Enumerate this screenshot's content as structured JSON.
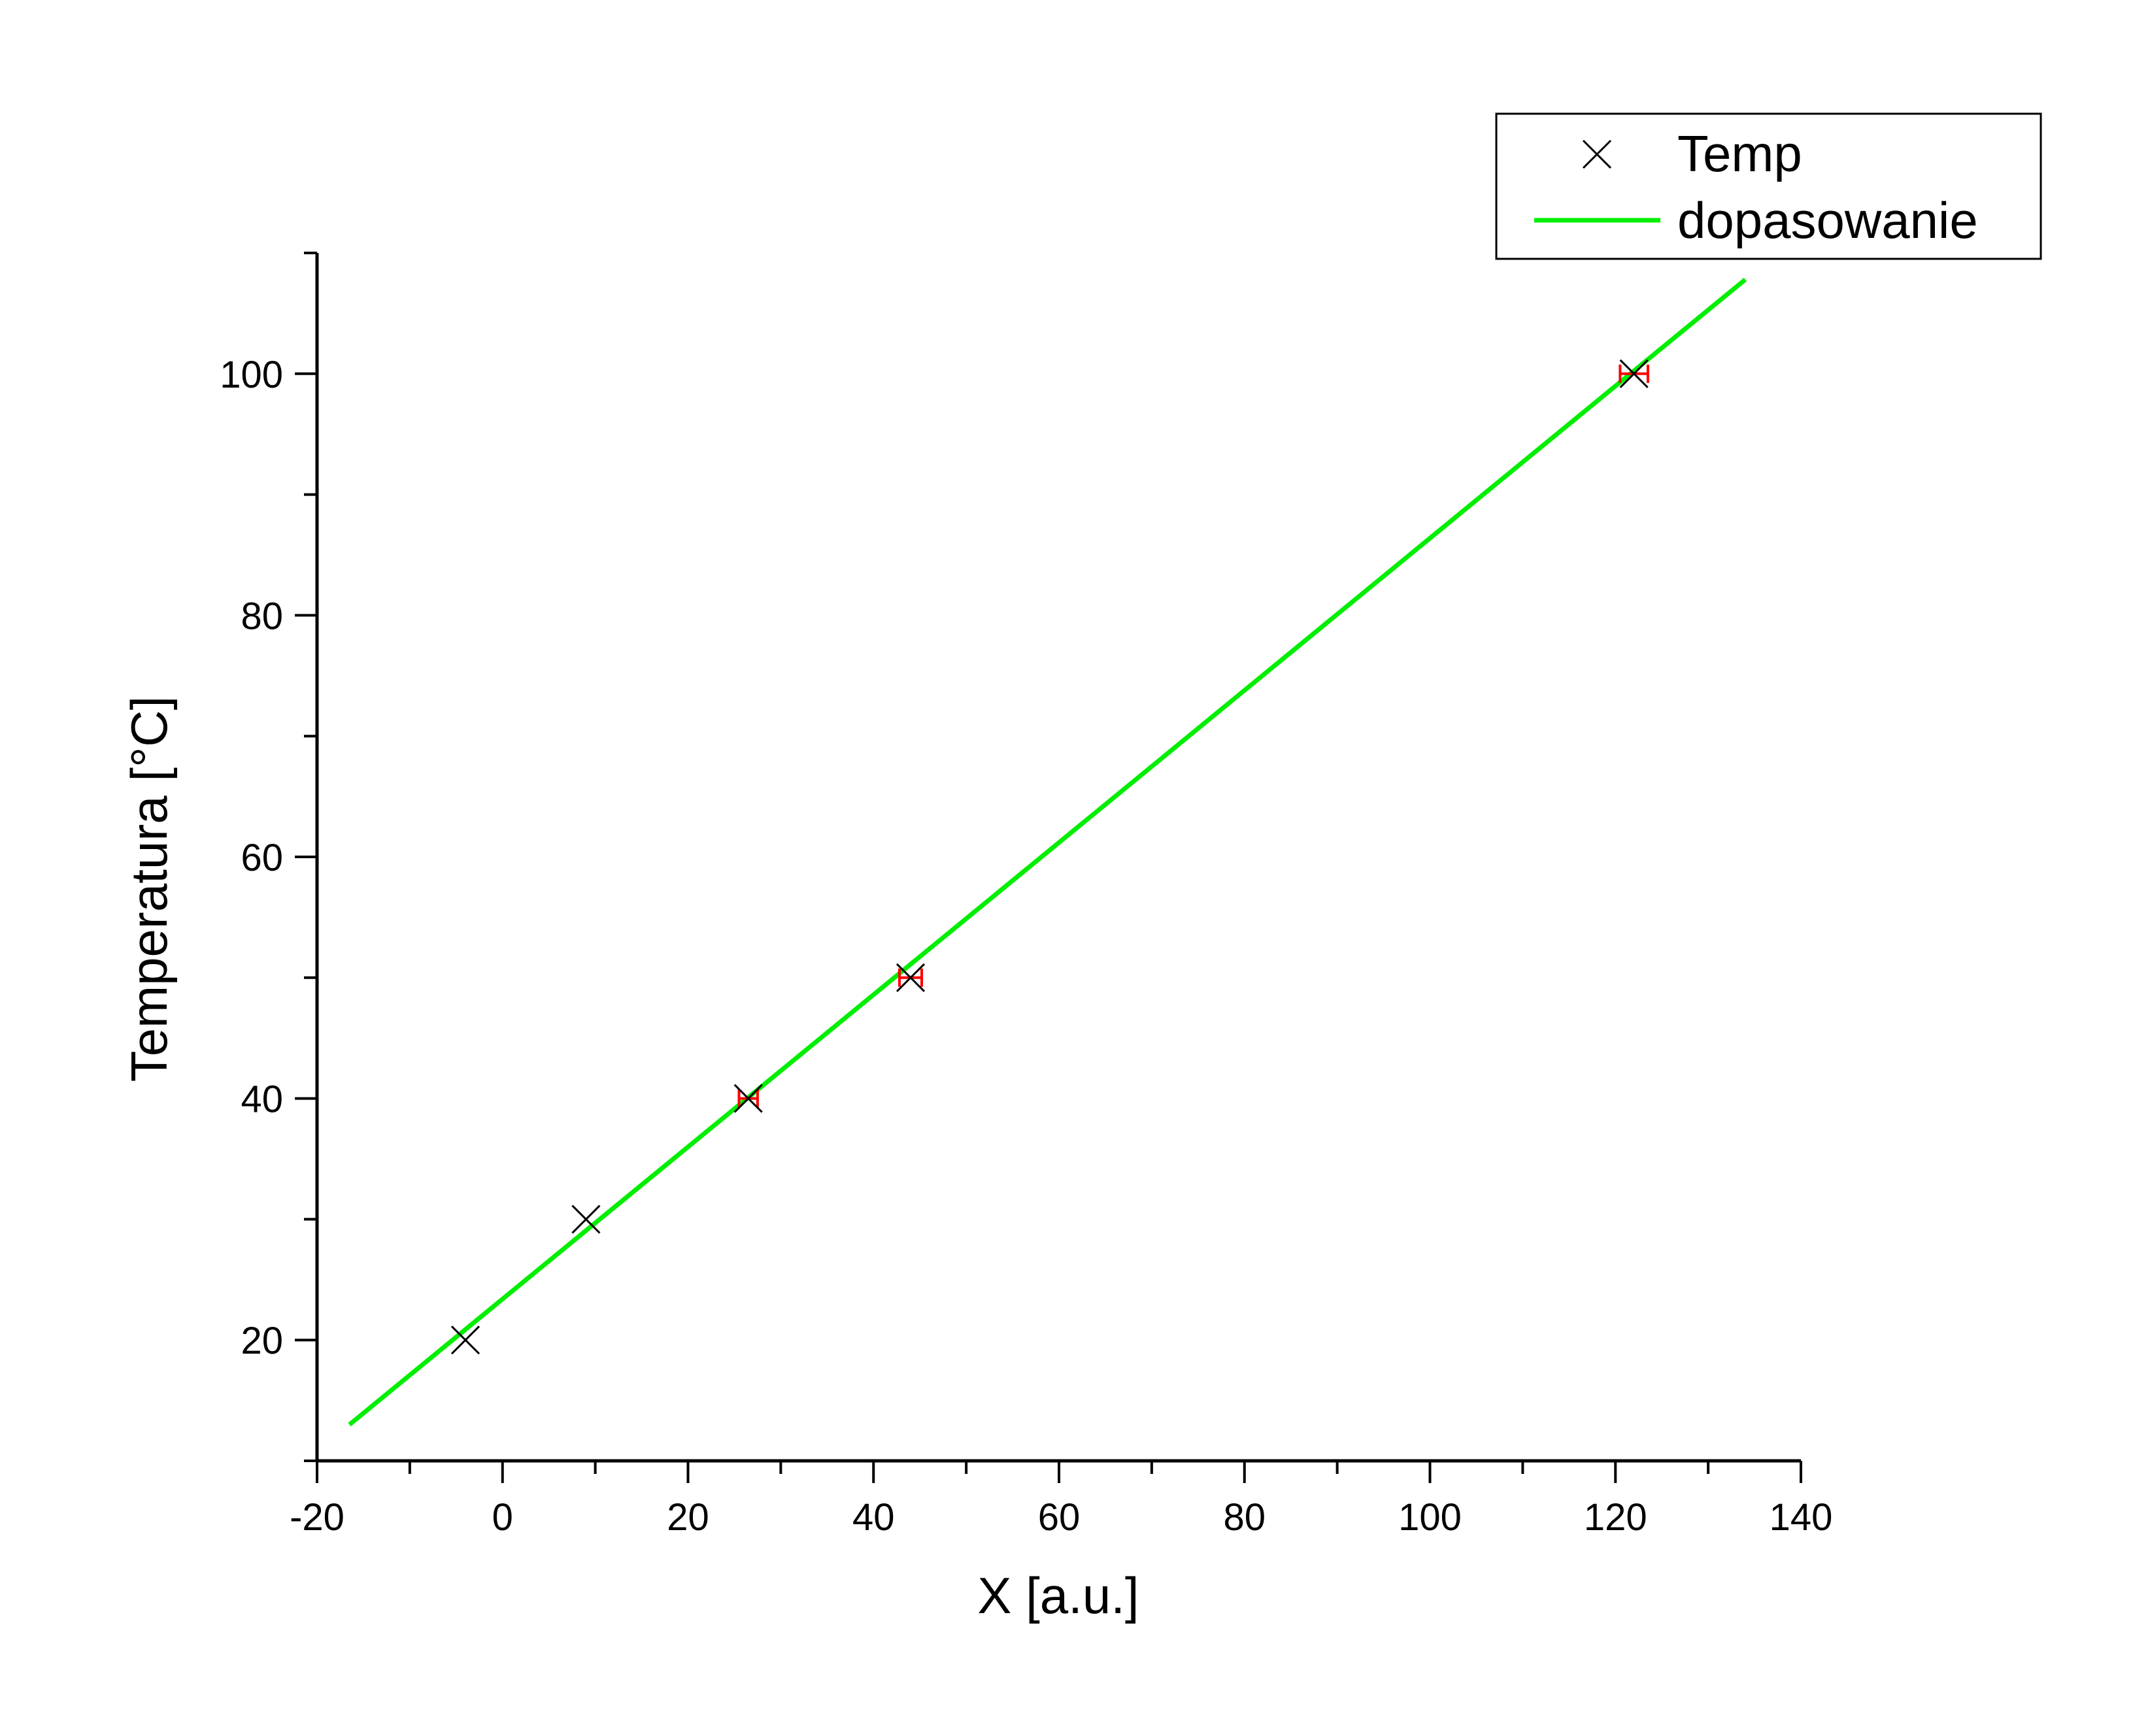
{
  "chart_data": {
    "type": "scatter",
    "xlabel": "X [a.u.]",
    "ylabel": "Temperatura [°C]",
    "xlim": [
      -20,
      140
    ],
    "ylim": [
      10,
      110
    ],
    "x_ticks": [
      "-20",
      "0",
      "20",
      "40",
      "60",
      "80",
      "100",
      "120",
      "140"
    ],
    "y_ticks": [
      "20",
      "40",
      "60",
      "80",
      "100"
    ],
    "x_tick_values": [
      -20,
      0,
      20,
      40,
      60,
      80,
      100,
      120,
      140
    ],
    "y_tick_values": [
      20,
      40,
      60,
      80,
      100
    ],
    "x_minor_step": 10,
    "y_minor_step": 10,
    "grid": false,
    "legend_position": "top-right",
    "series": [
      {
        "name": "Temp",
        "kind": "points",
        "marker": "x",
        "color": "#000000",
        "error_color": "#ff0000",
        "x": [
          -4,
          9,
          26.5,
          44,
          122
        ],
        "y": [
          20,
          30,
          40,
          50,
          100
        ],
        "x_error": [
          0,
          0,
          1,
          1.2,
          1.5
        ]
      },
      {
        "name": "dopasowanie",
        "kind": "line",
        "color": "#00ee00",
        "x": [
          -16.5,
          134
        ],
        "y": [
          13,
          107.8
        ]
      }
    ]
  }
}
